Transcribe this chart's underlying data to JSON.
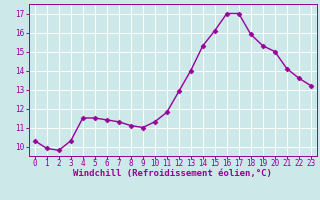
{
  "x": [
    0,
    1,
    2,
    3,
    4,
    5,
    6,
    7,
    8,
    9,
    10,
    11,
    12,
    13,
    14,
    15,
    16,
    17,
    18,
    19,
    20,
    21,
    22,
    23
  ],
  "y": [
    10.3,
    9.9,
    9.8,
    10.3,
    11.5,
    11.5,
    11.4,
    11.3,
    11.1,
    11.0,
    11.3,
    11.8,
    12.9,
    14.0,
    15.3,
    16.1,
    17.0,
    17.0,
    15.9,
    15.3,
    15.0,
    14.1,
    13.6,
    13.2
  ],
  "line_color": "#990099",
  "marker": "D",
  "marker_size": 2.5,
  "linewidth": 1.0,
  "background_color": "#cce8e8",
  "grid_color": "#ffffff",
  "xlabel": "Windchill (Refroidissement éolien,°C)",
  "xlabel_color": "#990099",
  "xlabel_fontsize": 6.5,
  "tick_color": "#990099",
  "tick_fontsize": 5.5,
  "ylim": [
    9.5,
    17.5
  ],
  "xlim": [
    -0.5,
    23.5
  ],
  "yticks": [
    10,
    11,
    12,
    13,
    14,
    15,
    16,
    17
  ],
  "xticks": [
    0,
    1,
    2,
    3,
    4,
    5,
    6,
    7,
    8,
    9,
    10,
    11,
    12,
    13,
    14,
    15,
    16,
    17,
    18,
    19,
    20,
    21,
    22,
    23
  ]
}
